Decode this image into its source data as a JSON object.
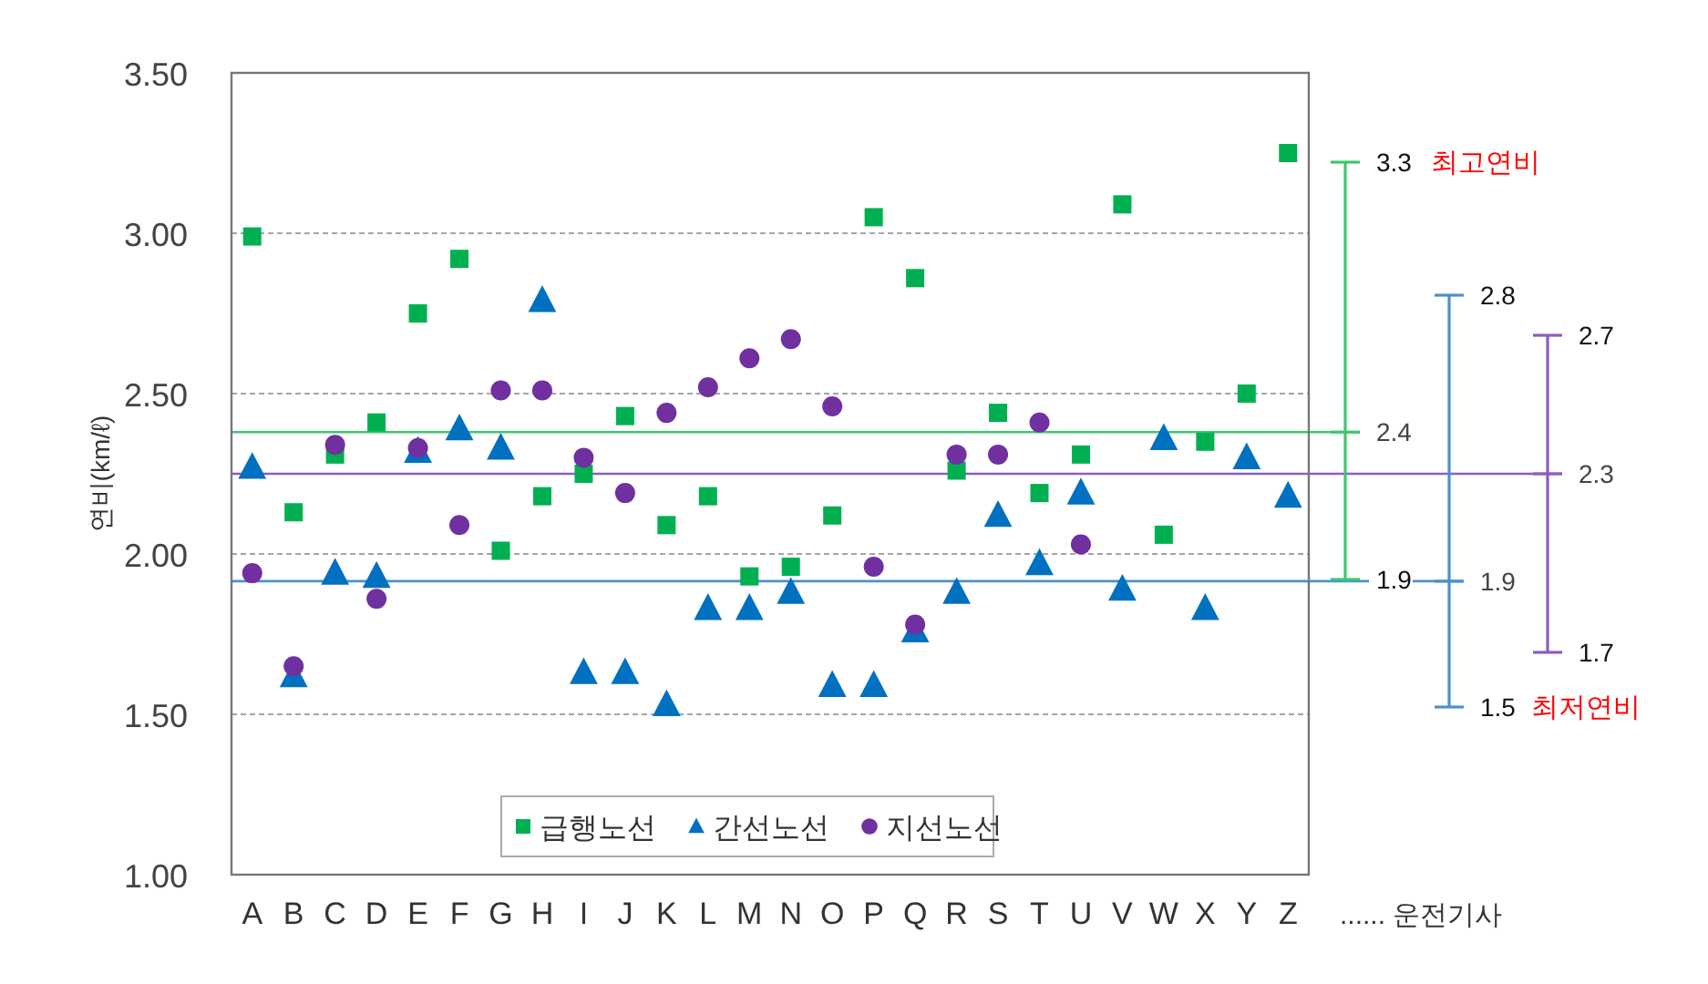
{
  "chart_data": {
    "type": "scatter",
    "ylabel": "연비(km/ℓ)",
    "categories": [
      "A",
      "B",
      "C",
      "D",
      "E",
      "F",
      "G",
      "H",
      "I",
      "J",
      "K",
      "L",
      "M",
      "N",
      "O",
      "P",
      "Q",
      "R",
      "S",
      "T",
      "U",
      "V",
      "W",
      "X",
      "Y",
      "Z"
    ],
    "series": [
      {
        "name": "급행노선",
        "color": "#00b050",
        "marker": "square",
        "values": [
          2.99,
          2.13,
          2.31,
          2.41,
          2.75,
          2.92,
          2.01,
          2.18,
          2.25,
          2.43,
          2.09,
          2.18,
          1.93,
          1.96,
          2.12,
          3.05,
          2.86,
          2.26,
          2.44,
          2.19,
          2.31,
          3.09,
          2.06,
          2.35,
          2.5,
          3.25
        ]
      },
      {
        "name": "간선노선",
        "color": "#0070c0",
        "marker": "triangle",
        "values": [
          2.27,
          1.62,
          1.94,
          1.93,
          2.32,
          2.39,
          2.33,
          2.79,
          1.63,
          1.63,
          1.53,
          1.83,
          1.83,
          1.88,
          1.59,
          1.59,
          1.76,
          1.88,
          2.12,
          1.97,
          2.19,
          1.89,
          2.36,
          1.83,
          2.3,
          2.18
        ]
      },
      {
        "name": "지선노선",
        "color": "#7030a0",
        "marker": "circle",
        "values": [
          1.94,
          1.65,
          2.34,
          1.86,
          2.33,
          2.09,
          2.51,
          2.51,
          2.3,
          2.19,
          2.44,
          2.52,
          2.61,
          2.67,
          2.46,
          1.96,
          1.78,
          2.31,
          2.31,
          2.41,
          2.03,
          null,
          null,
          null,
          null,
          null
        ]
      }
    ],
    "ylim": [
      1.0,
      3.5
    ],
    "yticks": [
      {
        "value": 1.0,
        "label": "1.00"
      },
      {
        "value": 1.5,
        "label": "1.50"
      },
      {
        "value": 2.0,
        "label": "2.00"
      },
      {
        "value": 2.5,
        "label": "2.50"
      },
      {
        "value": 3.0,
        "label": "3.00"
      },
      {
        "value": 3.5,
        "label": "3.50"
      }
    ],
    "grid": "y",
    "legend": "bottom",
    "ref_lines": [
      {
        "axis": "y",
        "value": 2.38,
        "label": "2.4",
        "color": "#3cc86e"
      },
      {
        "axis": "y",
        "value": 1.915,
        "label": "1.9",
        "color": "#4a90d0"
      },
      {
        "axis": "y",
        "value": 2.25,
        "label": "2.3",
        "color": "#8e5cc0"
      }
    ],
    "annotations": [
      "3.3",
      "1.9",
      "2.8",
      "1.5",
      "2.7",
      "1.7",
      "최고연비",
      "최저연비",
      "...... 운전기사"
    ]
  }
}
